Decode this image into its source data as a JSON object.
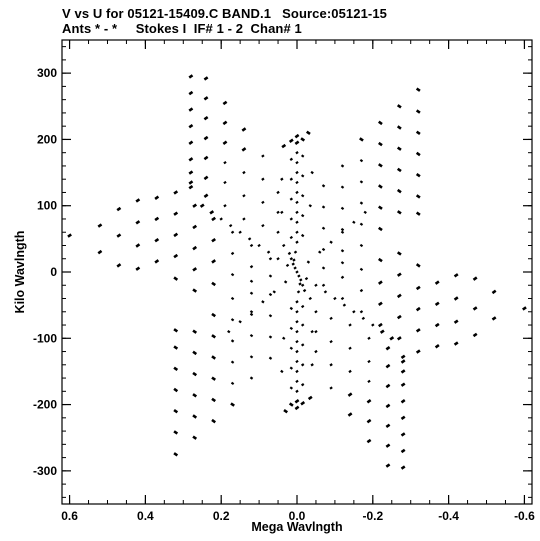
{
  "header": {
    "line1": "V vs U for 05121-15409.C BAND.1   Source:05121-15",
    "line2": "Ants * - *     Stokes I  IF# 1 - 2  Chan# 1"
  },
  "chart_data": {
    "type": "scatter",
    "title": "V vs U for 05121-15409.C BAND.1   Source:05121-15",
    "subtitle": "Ants * - *     Stokes I  IF# 1 - 2  Chan# 1",
    "xlabel": "Mega Wavlngth",
    "ylabel": "Kilo Wavlngth",
    "xlim": [
      0.62,
      -0.62
    ],
    "ylim": [
      -350,
      350
    ],
    "x_ticks": [
      0.6,
      0.4,
      0.2,
      0.0,
      -0.2,
      -0.4,
      -0.6
    ],
    "x_tick_labels": [
      "0.6",
      "0.4",
      "0.2",
      "0.0",
      "-0.2",
      "-0.4",
      "-0.6"
    ],
    "y_ticks": [
      300,
      200,
      100,
      0,
      -100,
      -200,
      -300
    ],
    "y_tick_labels": [
      "300",
      "200",
      "100",
      "0",
      "-100",
      "-200",
      "-300"
    ],
    "marker_color": "#000000",
    "pattern": "six-armed snapshot uv coverage with point-symmetric spokes",
    "series": [
      {
        "values": [
          [
            0.0,
            0
          ],
          [
            0.005,
            6
          ],
          [
            -0.005,
            -6
          ],
          [
            0.01,
            12
          ],
          [
            -0.01,
            -12
          ],
          [
            0.015,
            20
          ],
          [
            -0.015,
            -20
          ],
          [
            0.02,
            28
          ],
          [
            -0.02,
            -28
          ],
          [
            0.008,
            18
          ],
          [
            -0.008,
            -18
          ],
          [
            0.004,
            30
          ],
          [
            -0.004,
            -30
          ],
          [
            0.0,
            45
          ],
          [
            0.0,
            -45
          ],
          [
            0.0,
            60
          ],
          [
            0.0,
            -60
          ],
          [
            0.0,
            75
          ],
          [
            0.0,
            -75
          ],
          [
            0.0,
            90
          ],
          [
            0.0,
            -90
          ],
          [
            0.0,
            105
          ],
          [
            0.0,
            -105
          ],
          [
            0.0,
            120
          ],
          [
            0.0,
            -120
          ],
          [
            0.0,
            135
          ],
          [
            0.0,
            -135
          ],
          [
            0.0,
            150
          ],
          [
            0.0,
            -150
          ],
          [
            0.0,
            165
          ],
          [
            0.0,
            -165
          ],
          [
            0.0,
            180
          ],
          [
            0.0,
            -180
          ],
          [
            0.0,
            195
          ],
          [
            0.0,
            -195
          ],
          [
            0.0,
            205
          ],
          [
            0.0,
            -205
          ],
          [
            0.015,
            52
          ],
          [
            -0.015,
            -52
          ],
          [
            0.015,
            80
          ],
          [
            -0.015,
            -80
          ],
          [
            0.015,
            110
          ],
          [
            -0.015,
            -110
          ],
          [
            0.015,
            140
          ],
          [
            -0.015,
            -140
          ],
          [
            0.015,
            170
          ],
          [
            -0.015,
            -170
          ],
          [
            0.015,
            198
          ],
          [
            -0.015,
            -198
          ],
          [
            -0.015,
            55
          ],
          [
            0.015,
            -55
          ],
          [
            -0.015,
            85
          ],
          [
            0.015,
            -85
          ],
          [
            -0.015,
            115
          ],
          [
            0.015,
            -115
          ],
          [
            -0.015,
            145
          ],
          [
            0.015,
            -145
          ],
          [
            -0.015,
            175
          ],
          [
            0.015,
            -175
          ],
          [
            -0.015,
            200
          ],
          [
            0.015,
            -200
          ],
          [
            0.035,
            40
          ],
          [
            -0.035,
            -40
          ],
          [
            0.04,
            90
          ],
          [
            -0.04,
            -90
          ],
          [
            0.04,
            140
          ],
          [
            -0.04,
            -140
          ],
          [
            0.035,
            190
          ],
          [
            -0.035,
            -190
          ],
          [
            -0.035,
            100
          ],
          [
            0.035,
            -100
          ],
          [
            -0.04,
            150
          ],
          [
            0.04,
            -150
          ],
          [
            -0.03,
            210
          ],
          [
            0.03,
            -210
          ],
          [
            0.28,
            295
          ],
          [
            -0.28,
            -295
          ],
          [
            0.28,
            270
          ],
          [
            -0.28,
            -270
          ],
          [
            0.28,
            245
          ],
          [
            -0.28,
            -245
          ],
          [
            0.28,
            220
          ],
          [
            -0.28,
            -220
          ],
          [
            0.28,
            195
          ],
          [
            -0.28,
            -195
          ],
          [
            0.28,
            170
          ],
          [
            -0.28,
            -170
          ],
          [
            0.28,
            150
          ],
          [
            -0.28,
            -150
          ],
          [
            0.28,
            135
          ],
          [
            -0.28,
            -135
          ],
          [
            0.28,
            128
          ],
          [
            -0.28,
            -128
          ],
          [
            0.24,
            292
          ],
          [
            -0.24,
            -292
          ],
          [
            0.24,
            262
          ],
          [
            -0.24,
            -262
          ],
          [
            0.24,
            232
          ],
          [
            -0.24,
            -232
          ],
          [
            0.24,
            202
          ],
          [
            -0.24,
            -202
          ],
          [
            0.24,
            172
          ],
          [
            -0.24,
            -172
          ],
          [
            0.24,
            142
          ],
          [
            -0.24,
            -142
          ],
          [
            0.24,
            115
          ],
          [
            -0.24,
            -115
          ],
          [
            0.19,
            255
          ],
          [
            -0.19,
            -255
          ],
          [
            0.19,
            225
          ],
          [
            -0.19,
            -225
          ],
          [
            0.19,
            195
          ],
          [
            -0.19,
            -195
          ],
          [
            0.19,
            165
          ],
          [
            -0.19,
            -165
          ],
          [
            0.19,
            135
          ],
          [
            -0.19,
            -135
          ],
          [
            0.19,
            100
          ],
          [
            -0.19,
            -100
          ],
          [
            0.14,
            215
          ],
          [
            -0.14,
            -215
          ],
          [
            0.14,
            185
          ],
          [
            -0.14,
            -185
          ],
          [
            0.14,
            150
          ],
          [
            -0.14,
            -150
          ],
          [
            0.14,
            115
          ],
          [
            -0.14,
            -115
          ],
          [
            0.14,
            80
          ],
          [
            -0.14,
            -80
          ],
          [
            0.09,
            175
          ],
          [
            -0.09,
            -175
          ],
          [
            0.09,
            140
          ],
          [
            -0.09,
            -140
          ],
          [
            0.09,
            105
          ],
          [
            -0.09,
            -105
          ],
          [
            0.09,
            70
          ],
          [
            -0.09,
            -70
          ],
          [
            0.05,
            120
          ],
          [
            -0.05,
            -120
          ],
          [
            0.05,
            90
          ],
          [
            -0.05,
            -90
          ],
          [
            0.05,
            60
          ],
          [
            -0.05,
            -60
          ],
          [
            -0.32,
            275
          ],
          [
            0.32,
            -275
          ],
          [
            -0.32,
            242
          ],
          [
            0.32,
            -242
          ],
          [
            -0.32,
            210
          ],
          [
            0.32,
            -210
          ],
          [
            -0.32,
            178
          ],
          [
            0.32,
            -178
          ],
          [
            -0.32,
            146
          ],
          [
            0.32,
            -146
          ],
          [
            -0.32,
            114
          ],
          [
            0.32,
            -114
          ],
          [
            -0.32,
            88
          ],
          [
            0.32,
            -88
          ],
          [
            -0.27,
            250
          ],
          [
            0.27,
            -250
          ],
          [
            -0.27,
            218
          ],
          [
            0.27,
            -218
          ],
          [
            -0.27,
            186
          ],
          [
            0.27,
            -186
          ],
          [
            -0.27,
            154
          ],
          [
            0.27,
            -154
          ],
          [
            -0.27,
            122
          ],
          [
            0.27,
            -122
          ],
          [
            -0.27,
            90
          ],
          [
            0.27,
            -90
          ],
          [
            -0.22,
            225
          ],
          [
            0.22,
            -225
          ],
          [
            -0.22,
            193
          ],
          [
            0.22,
            -193
          ],
          [
            -0.22,
            161
          ],
          [
            0.22,
            -161
          ],
          [
            -0.22,
            129
          ],
          [
            0.22,
            -129
          ],
          [
            -0.22,
            97
          ],
          [
            0.22,
            -97
          ],
          [
            -0.22,
            65
          ],
          [
            0.22,
            -65
          ],
          [
            -0.17,
            200
          ],
          [
            0.17,
            -200
          ],
          [
            -0.17,
            168
          ],
          [
            0.17,
            -168
          ],
          [
            -0.17,
            136
          ],
          [
            0.17,
            -136
          ],
          [
            -0.17,
            104
          ],
          [
            0.17,
            -104
          ],
          [
            -0.17,
            72
          ],
          [
            0.17,
            -72
          ],
          [
            -0.17,
            40
          ],
          [
            0.17,
            -40
          ],
          [
            -0.12,
            160
          ],
          [
            0.12,
            -160
          ],
          [
            -0.12,
            128
          ],
          [
            0.12,
            -128
          ],
          [
            -0.12,
            96
          ],
          [
            0.12,
            -96
          ],
          [
            -0.12,
            64
          ],
          [
            0.12,
            -64
          ],
          [
            -0.12,
            32
          ],
          [
            0.12,
            -32
          ],
          [
            -0.07,
            130
          ],
          [
            0.07,
            -130
          ],
          [
            -0.07,
            98
          ],
          [
            0.07,
            -98
          ],
          [
            -0.07,
            66
          ],
          [
            0.07,
            -66
          ],
          [
            -0.07,
            34
          ],
          [
            0.07,
            -34
          ],
          [
            0.6,
            55
          ],
          [
            -0.6,
            -55
          ],
          [
            0.52,
            70
          ],
          [
            -0.52,
            -70
          ],
          [
            0.52,
            30
          ],
          [
            -0.52,
            -30
          ],
          [
            0.47,
            95
          ],
          [
            -0.47,
            -95
          ],
          [
            0.47,
            55
          ],
          [
            -0.47,
            -55
          ],
          [
            0.47,
            10
          ],
          [
            -0.47,
            -10
          ],
          [
            0.42,
            108
          ],
          [
            -0.42,
            -108
          ],
          [
            0.42,
            75
          ],
          [
            -0.42,
            -75
          ],
          [
            0.42,
            40
          ],
          [
            -0.42,
            -40
          ],
          [
            0.42,
            5
          ],
          [
            -0.42,
            -5
          ],
          [
            0.37,
            112
          ],
          [
            -0.37,
            -112
          ],
          [
            0.37,
            80
          ],
          [
            -0.37,
            -80
          ],
          [
            0.37,
            48
          ],
          [
            -0.37,
            -48
          ],
          [
            0.37,
            16
          ],
          [
            -0.37,
            -16
          ],
          [
            0.32,
            120
          ],
          [
            -0.32,
            -120
          ],
          [
            0.32,
            88
          ],
          [
            -0.32,
            -88
          ],
          [
            0.32,
            56
          ],
          [
            -0.32,
            -56
          ],
          [
            0.32,
            24
          ],
          [
            -0.32,
            -24
          ],
          [
            0.32,
            -10
          ],
          [
            -0.32,
            10
          ],
          [
            0.27,
            100
          ],
          [
            -0.27,
            -100
          ],
          [
            0.27,
            68
          ],
          [
            -0.27,
            -68
          ],
          [
            0.27,
            36
          ],
          [
            -0.27,
            -36
          ],
          [
            0.27,
            4
          ],
          [
            -0.27,
            -4
          ],
          [
            0.27,
            -28
          ],
          [
            -0.27,
            28
          ],
          [
            0.22,
            80
          ],
          [
            -0.22,
            -80
          ],
          [
            0.22,
            48
          ],
          [
            -0.22,
            -48
          ],
          [
            0.22,
            16
          ],
          [
            -0.22,
            -16
          ],
          [
            0.22,
            -18
          ],
          [
            -0.22,
            18
          ],
          [
            0.17,
            60
          ],
          [
            -0.17,
            -60
          ],
          [
            0.17,
            28
          ],
          [
            -0.17,
            -28
          ],
          [
            0.17,
            -4
          ],
          [
            -0.17,
            4
          ],
          [
            0.12,
            40
          ],
          [
            -0.12,
            -40
          ],
          [
            0.12,
            8
          ],
          [
            -0.12,
            -8
          ],
          [
            0.12,
            -14
          ],
          [
            -0.12,
            14
          ],
          [
            0.07,
            20
          ],
          [
            -0.07,
            -20
          ],
          [
            0.07,
            -6
          ],
          [
            -0.07,
            6
          ],
          [
            0.25,
            100
          ],
          [
            -0.25,
            -100
          ],
          [
            0.225,
            90
          ],
          [
            -0.225,
            -90
          ],
          [
            0.2,
            80
          ],
          [
            -0.2,
            -80
          ],
          [
            0.175,
            70
          ],
          [
            -0.175,
            -70
          ],
          [
            0.15,
            60
          ],
          [
            -0.15,
            -60
          ],
          [
            0.125,
            50
          ],
          [
            -0.125,
            -50
          ],
          [
            0.1,
            40
          ],
          [
            -0.1,
            -40
          ],
          [
            0.075,
            30
          ],
          [
            -0.075,
            -30
          ],
          [
            0.05,
            20
          ],
          [
            -0.05,
            -20
          ],
          [
            0.025,
            10
          ],
          [
            -0.025,
            -10
          ],
          [
            -0.03,
            15
          ],
          [
            0.03,
            -15
          ],
          [
            -0.06,
            30
          ],
          [
            0.06,
            -30
          ],
          [
            -0.09,
            45
          ],
          [
            0.09,
            -45
          ],
          [
            -0.12,
            60
          ],
          [
            0.12,
            -60
          ],
          [
            -0.15,
            75
          ],
          [
            0.15,
            -75
          ],
          [
            -0.18,
            90
          ],
          [
            0.18,
            -90
          ]
        ]
      }
    ]
  }
}
